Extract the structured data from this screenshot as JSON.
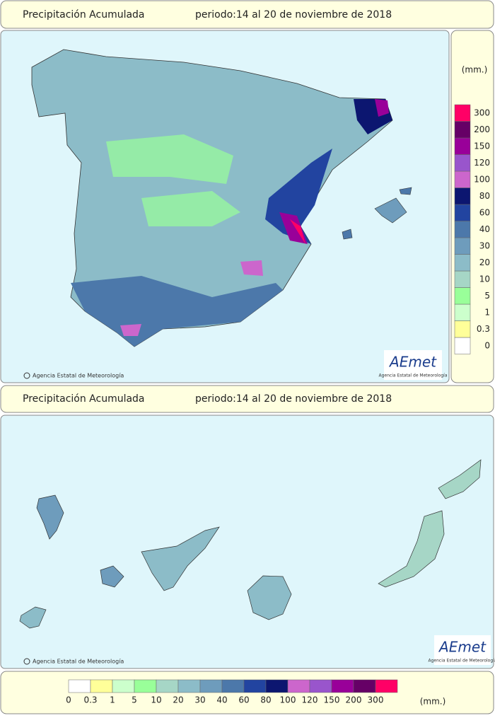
{
  "headers": [
    {
      "title": "Precipitación Acumulada",
      "period": "periodo:14 al 20 de noviembre de 2018"
    },
    {
      "title": "Precipitación Acumulada",
      "period": "periodo:14 al 20 de noviembre de 2018"
    }
  ],
  "credits": [
    "Agencia Estatal de Meteorología",
    "Agencia Estatal de Meteorología"
  ],
  "logo": {
    "name": "AEmet",
    "subtitle": "Agencia Estatal de Meteorología"
  },
  "legend": {
    "unit": "(mm.)",
    "levels": [
      {
        "value": 0,
        "color": "#ffffff"
      },
      {
        "value": 0.3,
        "color": "#ffff99"
      },
      {
        "value": 1,
        "color": "#ccffcc"
      },
      {
        "value": 5,
        "color": "#99ff99"
      },
      {
        "value": 10,
        "color": "#a6d6c6"
      },
      {
        "value": 20,
        "color": "#8cbcc8"
      },
      {
        "value": 30,
        "color": "#6e9cbc"
      },
      {
        "value": 40,
        "color": "#4c78aa"
      },
      {
        "value": 60,
        "color": "#2244a0"
      },
      {
        "value": 80,
        "color": "#0c1670"
      },
      {
        "value": 100,
        "color": "#cc66cc"
      },
      {
        "value": 120,
        "color": "#9955cc"
      },
      {
        "value": 150,
        "color": "#990099"
      },
      {
        "value": 200,
        "color": "#660066"
      },
      {
        "value": 300,
        "color": "#ff0066"
      }
    ]
  }
}
